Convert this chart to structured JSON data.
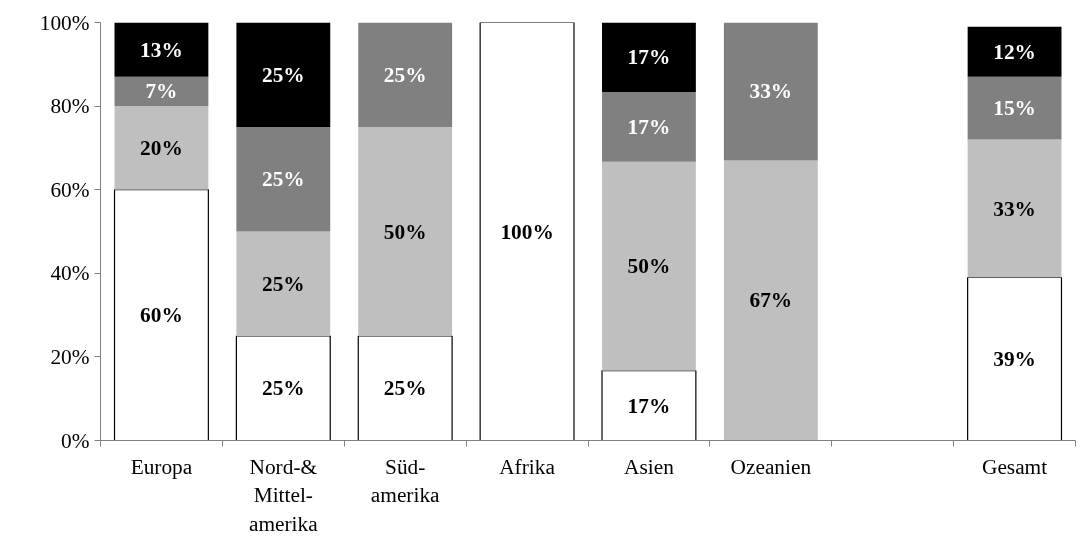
{
  "chart_data": {
    "type": "bar",
    "stacked": true,
    "categories": [
      "Europa",
      "Nord-&\nMittel-\namerika",
      "Süd-\namerika",
      "Afrika",
      "Asien",
      "Ozeanien",
      null,
      "Gesamt"
    ],
    "series": [
      {
        "color": "#ffffff",
        "values": [
          60,
          25,
          25,
          100,
          16.7,
          0,
          null,
          39
        ],
        "value_labels": [
          "60%",
          "25%",
          "25%",
          "100%",
          "17%",
          null,
          null,
          "39%"
        ]
      },
      {
        "color": "#bfbfbf",
        "values": [
          20,
          25,
          50,
          0,
          50,
          67,
          null,
          33
        ],
        "value_labels": [
          "20%",
          "25%",
          "50%",
          null,
          "50%",
          "67%",
          null,
          "33%"
        ]
      },
      {
        "color": "#808080",
        "values": [
          7,
          25,
          25,
          0,
          16.7,
          33,
          null,
          15
        ],
        "value_labels": [
          "7%",
          "25%",
          "25%",
          null,
          "17%",
          "33%",
          null,
          "15%"
        ]
      },
      {
        "color": "#000000",
        "values": [
          13,
          25,
          0,
          0,
          16.6,
          0,
          null,
          12
        ],
        "value_labels": [
          "13%",
          "25%",
          null,
          null,
          "17%",
          null,
          null,
          "12%"
        ]
      }
    ],
    "ylim": [
      0,
      100
    ],
    "yticks": [
      {
        "value": 0,
        "label": "0%"
      },
      {
        "value": 20,
        "label": "20%"
      },
      {
        "value": 40,
        "label": "40%"
      },
      {
        "value": 60,
        "label": "60%"
      },
      {
        "value": 80,
        "label": "80%"
      },
      {
        "value": 100,
        "label": "100%"
      }
    ],
    "grid": false
  }
}
